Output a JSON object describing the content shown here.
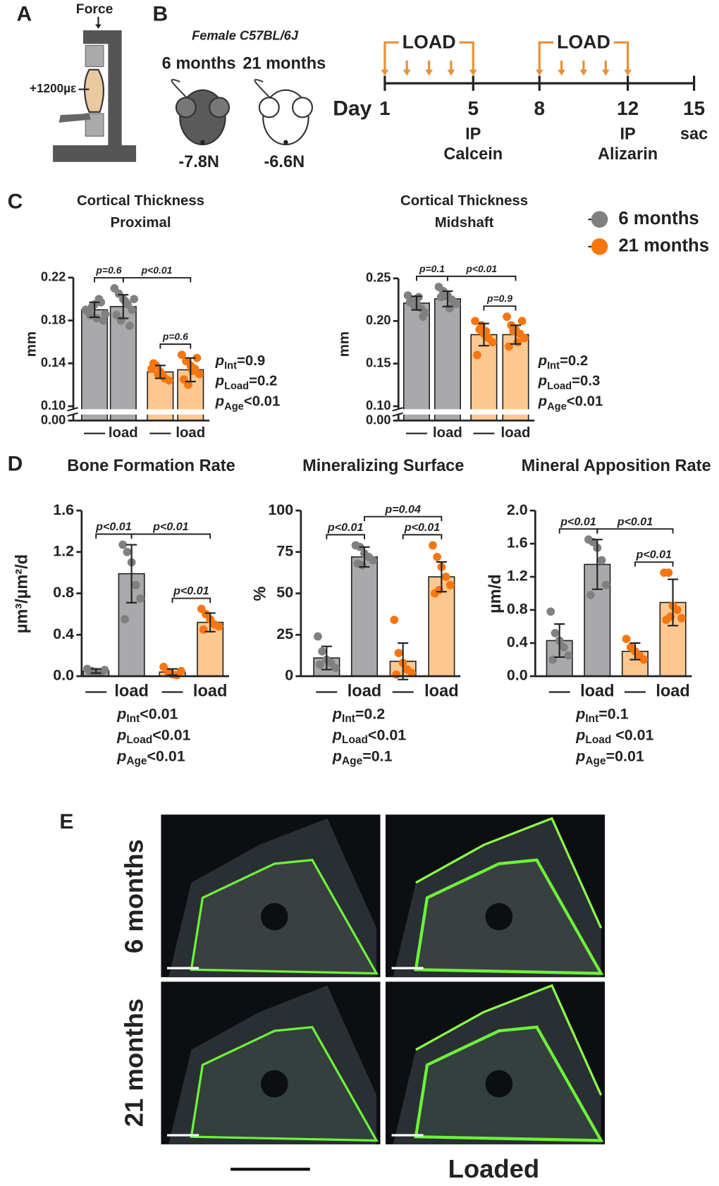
{
  "labels": [
    "A",
    "B",
    "C",
    "D",
    "E"
  ],
  "device": {
    "force": "Force",
    "strain": "+1200µε"
  },
  "cohort": {
    "strain": "Female C57BL/6J",
    "groups": [
      {
        "age": "6 months",
        "load": "-7.8N"
      },
      {
        "age": "21 months",
        "load": "-6.6N"
      }
    ]
  },
  "timeline": {
    "label": "Day",
    "days": [
      1,
      5,
      8,
      12,
      15
    ],
    "load_label": "LOAD",
    "load_periods": [
      [
        1,
        5
      ],
      [
        8,
        12
      ]
    ],
    "events": [
      {
        "day": 5,
        "lines": [
          "IP",
          "Calcein"
        ],
        "color": "#6aa84f"
      },
      {
        "day": 12,
        "lines": [
          "IP",
          "Alizarin"
        ],
        "color": "#a52a2a"
      },
      {
        "day": 15,
        "lines": [
          "sac"
        ],
        "color": "#222222"
      }
    ]
  },
  "chart_data": [
    {
      "type": "bar",
      "title": "Cortical Thickness",
      "subtitle": "Proximal",
      "ylabel": "mm",
      "categories": [
        null,
        "load",
        null,
        "load"
      ],
      "ylim": [
        0.1,
        0.22
      ],
      "yticks": [
        {
          "value": 0,
          "label": "0.00"
        },
        {
          "value": 0.1,
          "label": "0.10"
        },
        0.14,
        0.18,
        0.22
      ],
      "series": [
        {
          "color": "#808080",
          "bar_color": "#a9a9ab",
          "values": [
            0.19,
            0.193,
            null,
            null
          ],
          "errors": [
            0.007,
            0.011,
            null,
            null
          ],
          "points": [
            [
              0.19,
              0.185,
              0.195,
              0.2,
              0.18,
              0.188,
              0.193,
              0.182,
              0.197,
              0.186
            ],
            [
              0.21,
              0.205,
              0.2,
              0.195,
              0.19,
              0.185,
              0.18,
              0.198,
              0.175,
              0.2
            ],
            null,
            null
          ]
        },
        {
          "color": "#f7760f",
          "bar_color": "#fcc88f",
          "values": [
            null,
            null,
            0.132,
            0.134
          ],
          "errors": [
            null,
            null,
            0.006,
            0.011
          ],
          "points": [
            null,
            null,
            [
              0.135,
              0.138,
              0.132,
              0.126,
              0.124,
              0.14,
              0.13,
              0.129
            ],
            [
              0.148,
              0.142,
              0.138,
              0.135,
              0.13,
              0.125,
              0.12,
              0.133,
              0.145
            ]
          ]
        }
      ],
      "comparisons": [
        {
          "from": 0,
          "to": 1,
          "label": "p=0.6"
        },
        {
          "from": 2,
          "to": 3,
          "label": "p=0.6"
        },
        {
          "from": 1,
          "to": 3,
          "label": "p<0.01"
        }
      ],
      "stats": [
        {
          "p": "p",
          "sub": "Int",
          "text": "=0.9"
        },
        {
          "p": "p",
          "sub": "Load",
          "text": "=0.2"
        },
        {
          "p": "p",
          "sub": "Age",
          "text": "<0.01"
        }
      ]
    },
    {
      "type": "bar",
      "title": "Cortical Thickness",
      "subtitle": "Midshaft",
      "ylabel": "mm",
      "categories": [
        null,
        "load",
        null,
        "load"
      ],
      "ylim": [
        0.1,
        0.25
      ],
      "yticks": [
        {
          "value": 0,
          "label": "0.00"
        },
        {
          "value": 0.1,
          "label": "0.10"
        },
        0.15,
        {
          "value": 0.2,
          "label": "0.20"
        },
        0.25
      ],
      "series": [
        {
          "name": "6 months",
          "color": "#808080",
          "bar_color": "#a9a9ab",
          "values": [
            0.221,
            0.226,
            null,
            null
          ],
          "errors": [
            0.008,
            0.009,
            null,
            null
          ],
          "points": [
            [
              0.23,
              0.225,
              0.22,
              0.215,
              0.21,
              0.222,
              0.218,
              0.228,
              0.205
            ],
            [
              0.24,
              0.235,
              0.23,
              0.225,
              0.22,
              0.228,
              0.232,
              0.215,
              0.222
            ],
            null,
            null
          ]
        },
        {
          "name": "21 months",
          "color": "#f7760f",
          "bar_color": "#fcc88f",
          "values": [
            null,
            null,
            0.184,
            0.184
          ],
          "errors": [
            null,
            null,
            0.013,
            0.011
          ],
          "points": [
            null,
            null,
            [
              0.2,
              0.19,
              0.185,
              0.18,
              0.175,
              0.16,
              0.195,
              0.188
            ],
            [
              0.205,
              0.195,
              0.19,
              0.185,
              0.18,
              0.17,
              0.188,
              0.175,
              0.2
            ]
          ]
        }
      ],
      "comparisons": [
        {
          "from": 0,
          "to": 1,
          "label": "p=0.1"
        },
        {
          "from": 2,
          "to": 3,
          "label": "p=0.9"
        },
        {
          "from": 1,
          "to": 3,
          "label": "p<0.01"
        }
      ],
      "stats": [
        {
          "p": "p",
          "sub": "Int",
          "text": "=0.2"
        },
        {
          "p": "p",
          "sub": "Load",
          "text": "=0.3"
        },
        {
          "p": "p",
          "sub": "Age",
          "text": "<0.01"
        }
      ]
    },
    {
      "type": "bar",
      "title": "Bone Formation Rate",
      "ylabel": "µm³/µm²/d",
      "categories": [
        null,
        "load",
        null,
        "load"
      ],
      "ylim": [
        0,
        1.6
      ],
      "yticks": [
        {
          "value": 0,
          "label": "0.0"
        },
        0.4,
        0.8,
        1.2,
        1.6
      ],
      "series": [
        {
          "color": "#808080",
          "bar_color": "#a9a9ab",
          "values": [
            0.05,
            0.99,
            null,
            null
          ],
          "errors": [
            0.02,
            0.28,
            null,
            null
          ],
          "points": [
            [
              0.07,
              0.05,
              0.04,
              0.03,
              0.06,
              0.05
            ],
            [
              1.27,
              1.2,
              1.1,
              0.88,
              0.75,
              0.55
            ],
            null,
            null
          ]
        },
        {
          "color": "#f7760f",
          "bar_color": "#fcc88f",
          "values": [
            null,
            null,
            0.04,
            0.52
          ],
          "errors": [
            null,
            null,
            0.03,
            0.09
          ],
          "points": [
            null,
            null,
            [
              0.09,
              0.04,
              0.02,
              0.01,
              0.05
            ],
            [
              0.65,
              0.6,
              0.55,
              0.5,
              0.48,
              0.45
            ]
          ]
        }
      ],
      "comparisons": [
        {
          "from": 0,
          "to": 1,
          "label": "p<0.01"
        },
        {
          "from": 2,
          "to": 3,
          "label": "p<0.01"
        },
        {
          "from": 1,
          "to": 3,
          "label": "p<0.01"
        }
      ],
      "stats": [
        {
          "p": "p",
          "sub": "Int",
          "text": "<0.01"
        },
        {
          "p": "p",
          "sub": "Load",
          "text": "<0.01"
        },
        {
          "p": "p",
          "sub": "Age",
          "text": "<0.01"
        }
      ]
    },
    {
      "type": "bar",
      "title": "Mineralizing Surface",
      "ylabel": "%",
      "categories": [
        null,
        "load",
        null,
        "load"
      ],
      "ylim": [
        0,
        100
      ],
      "yticks": [
        0,
        25,
        50,
        75,
        100
      ],
      "series": [
        {
          "color": "#808080",
          "bar_color": "#a9a9ab",
          "values": [
            11,
            72,
            null,
            null
          ],
          "errors": [
            7,
            6,
            null,
            null
          ],
          "points": [
            [
              24,
              15,
              10,
              8,
              5,
              7
            ],
            [
              79,
              78,
              74,
              72,
              70,
              68,
              67
            ],
            null,
            null
          ]
        },
        {
          "color": "#f7760f",
          "bar_color": "#fcc88f",
          "values": [
            null,
            null,
            9,
            60
          ],
          "errors": [
            null,
            null,
            11,
            9
          ],
          "points": [
            null,
            null,
            [
              34,
              14,
              8,
              4,
              2,
              1
            ],
            [
              79,
              72,
              66,
              60,
              55,
              50,
              52
            ]
          ]
        }
      ],
      "comparisons": [
        {
          "from": 0,
          "to": 1,
          "label": "p<0.01"
        },
        {
          "from": 2,
          "to": 3,
          "label": "p<0.01"
        },
        {
          "from": 1,
          "to": 3,
          "label": "p=0.04"
        }
      ],
      "stats": [
        {
          "p": "p",
          "sub": "Int",
          "text": "=0.2"
        },
        {
          "p": "p",
          "sub": "Load",
          "text": "<0.01"
        },
        {
          "p": "p",
          "sub": "Age",
          "text": "=0.1"
        }
      ]
    },
    {
      "type": "bar",
      "title": "Mineral Apposition Rate",
      "ylabel": "µm/d",
      "categories": [
        null,
        "load",
        null,
        "load"
      ],
      "ylim": [
        0,
        2
      ],
      "yticks": [
        {
          "value": 0,
          "label": "0.0"
        },
        0.4,
        0.8,
        1.2,
        1.6,
        {
          "value": 2,
          "label": "2.0"
        }
      ],
      "series": [
        {
          "color": "#808080",
          "bar_color": "#a9a9ab",
          "values": [
            0.43,
            1.35,
            null,
            null
          ],
          "errors": [
            0.2,
            0.3,
            null,
            null
          ],
          "points": [
            [
              0.78,
              0.52,
              0.43,
              0.35,
              0.25,
              0.2
            ],
            [
              1.65,
              1.62,
              1.55,
              1.4,
              1.1,
              0.98
            ],
            null,
            null
          ]
        },
        {
          "color": "#f7760f",
          "bar_color": "#fcc88f",
          "values": [
            null,
            null,
            0.3,
            0.89
          ],
          "errors": [
            null,
            null,
            0.1,
            0.28
          ],
          "points": [
            null,
            null,
            [
              0.45,
              0.35,
              0.3,
              0.25,
              0.2
            ],
            [
              1.25,
              1.25,
              0.85,
              0.8,
              0.7,
              0.68,
              0.72
            ]
          ]
        }
      ],
      "comparisons": [
        {
          "from": 0,
          "to": 1,
          "label": "p<0.01"
        },
        {
          "from": 2,
          "to": 3,
          "label": "p<0.01"
        },
        {
          "from": 1,
          "to": 3,
          "label": "p<0.01"
        }
      ],
      "stats": [
        {
          "p": "p",
          "sub": "Int",
          "text": "=0.1"
        },
        {
          "p": "p",
          "sub": "Load",
          "text": " <0.01"
        },
        {
          "p": "p",
          "sub": "Age",
          "text": "=0.01"
        }
      ]
    }
  ],
  "histology": {
    "rows": [
      "6 months",
      "21 months"
    ],
    "column": "Loaded"
  }
}
